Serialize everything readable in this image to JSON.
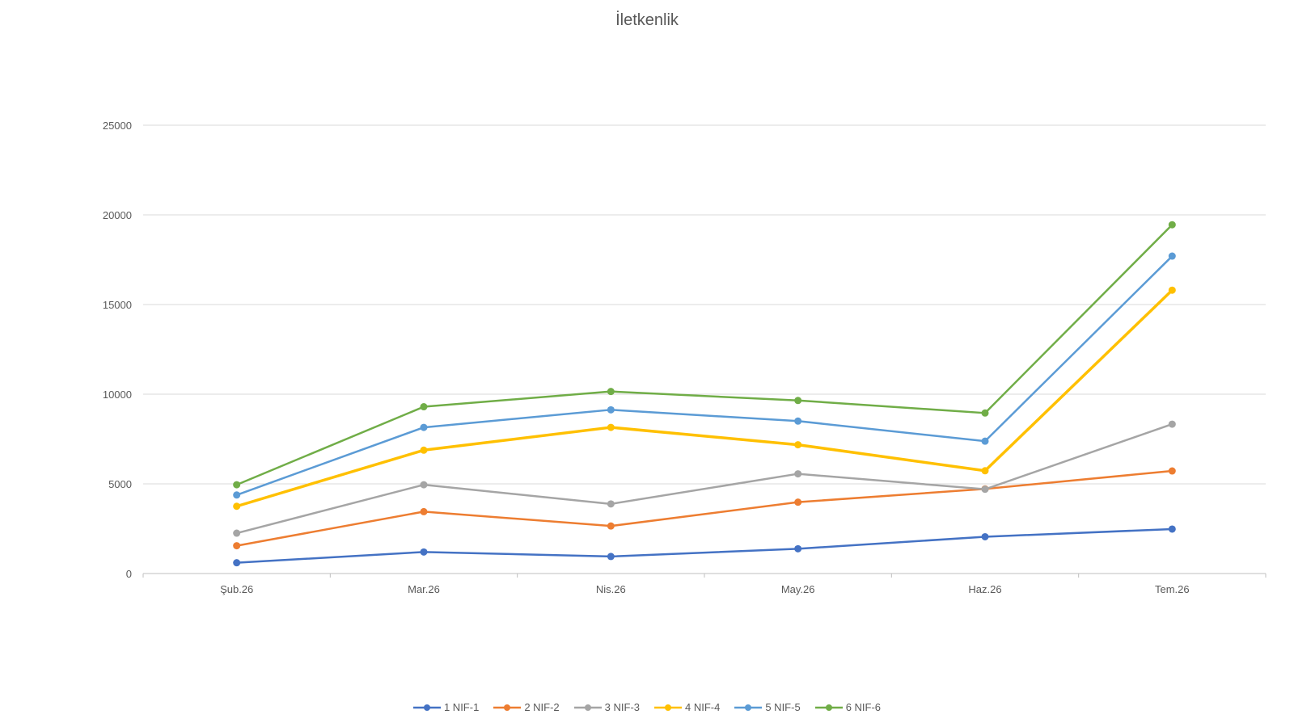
{
  "chart_data": {
    "type": "line",
    "title": "İletkenlik",
    "xlabel": "",
    "ylabel": "",
    "categories": [
      "Şub.26",
      "Mar.26",
      "Nis.26",
      "May.26",
      "Haz.26",
      "Tem.26"
    ],
    "y_ticks": [
      "0",
      "5000",
      "10000",
      "15000",
      "20000",
      "25000"
    ],
    "ylim": [
      0,
      25000
    ],
    "grid": true,
    "legend_position": "bottom",
    "series": [
      {
        "name": "1 NIF-1",
        "color": "#4472C4",
        "values": [
          600,
          1200,
          950,
          1380,
          2050,
          2480
        ]
      },
      {
        "name": "2 NIF-2",
        "color": "#ED7D31",
        "values": [
          1550,
          3450,
          2650,
          3980,
          4720,
          5720
        ]
      },
      {
        "name": "3 NIF-3",
        "color": "#A5A5A5",
        "values": [
          2250,
          4950,
          3880,
          5560,
          4700,
          8330
        ]
      },
      {
        "name": "4 NIF-4",
        "color": "#FFC000",
        "values": [
          3750,
          6880,
          8150,
          7180,
          5730,
          15800
        ]
      },
      {
        "name": "5 NIF-5",
        "color": "#5B9BD5",
        "values": [
          4380,
          8150,
          9130,
          8500,
          7380,
          17700
        ]
      },
      {
        "name": "6 NIF-6",
        "color": "#70AD47",
        "values": [
          4950,
          9300,
          10150,
          9650,
          8950,
          19450
        ]
      }
    ]
  }
}
